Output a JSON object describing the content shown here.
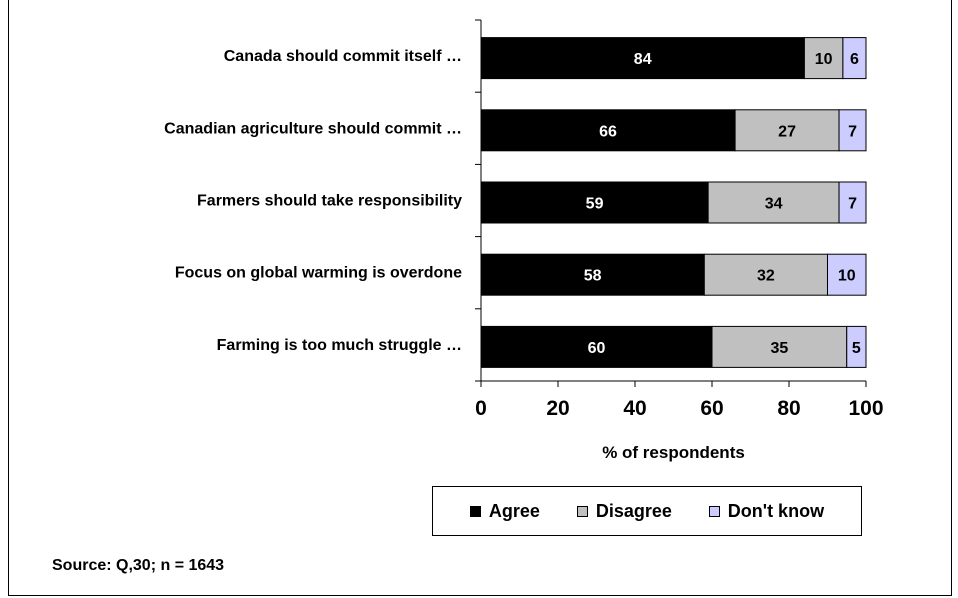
{
  "chart_data": {
    "type": "bar",
    "orientation": "horizontal",
    "stacked": true,
    "title": "",
    "xlabel": "% of respondents",
    "ylabel": "",
    "xlim": [
      0,
      100
    ],
    "x_ticks": [
      "0",
      "20",
      "40",
      "60",
      "80",
      "100"
    ],
    "categories": [
      "Canada should commit itself …",
      "Canadian agriculture should commit …",
      "Farmers should take responsibility",
      "Focus on global warming is overdone",
      "Farming is too much struggle …"
    ],
    "series": [
      {
        "name": "Agree",
        "color": "#000000",
        "label_color": "#ffffff",
        "values": [
          84,
          66,
          59,
          58,
          60
        ]
      },
      {
        "name": "Disagree",
        "color": "#c0c0c0",
        "label_color": "#000000",
        "values": [
          10,
          27,
          34,
          32,
          35
        ]
      },
      {
        "name": "Don't know",
        "color": "#ccccff",
        "label_color": "#000000",
        "values": [
          6,
          7,
          7,
          10,
          5
        ]
      }
    ],
    "legend_position": "bottom-right",
    "grid": false
  },
  "source": "Source:  Q,30; n = 1643"
}
